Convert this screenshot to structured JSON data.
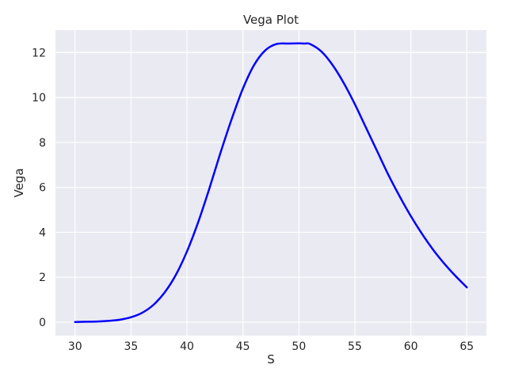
{
  "chart_data": {
    "type": "line",
    "title": "Vega Plot",
    "xlabel": "S",
    "ylabel": "Vega",
    "xlim": [
      28.25,
      66.75
    ],
    "ylim": [
      -0.6,
      13.0
    ],
    "xticks": [
      30,
      35,
      40,
      45,
      50,
      55,
      60,
      65
    ],
    "yticks": [
      0,
      2,
      4,
      6,
      8,
      10,
      12
    ],
    "grid": true,
    "legend": "none",
    "background": "#eaeaf2",
    "gridColor": "#ffffff",
    "series": [
      {
        "color": "#0000ff",
        "x": [
          30,
          31,
          32,
          33,
          34,
          35,
          36,
          37,
          38,
          39,
          40,
          41,
          42,
          43,
          44,
          45,
          46,
          47,
          48,
          49,
          50,
          50.5,
          51,
          52,
          53,
          54,
          55,
          56,
          57,
          58,
          59,
          60,
          61,
          62,
          63,
          64,
          65
        ],
        "values": [
          0.01,
          0.02,
          0.03,
          0.06,
          0.11,
          0.22,
          0.42,
          0.77,
          1.32,
          2.1,
          3.15,
          4.45,
          5.95,
          7.55,
          9.05,
          10.4,
          11.45,
          12.1,
          12.38,
          12.4,
          12.41,
          12.4,
          12.38,
          12.05,
          11.45,
          10.65,
          9.7,
          8.65,
          7.6,
          6.55,
          5.6,
          4.72,
          3.93,
          3.22,
          2.6,
          2.05,
          1.55
        ]
      }
    ]
  }
}
